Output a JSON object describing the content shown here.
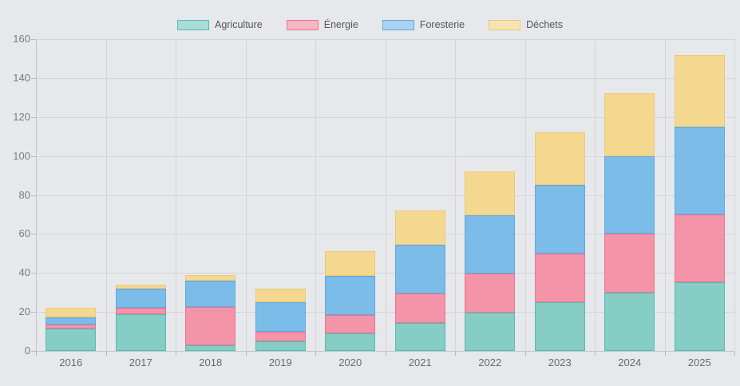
{
  "background_color": "#e7e8eb",
  "gridline_color": "#d4d5d9",
  "axis_color": "#c2c3c7",
  "chart_data": {
    "type": "bar",
    "stacked": true,
    "title": "",
    "xlabel": "",
    "ylabel": "",
    "legend_position": "top-center",
    "grid": true,
    "ylim": [
      0,
      160
    ],
    "ytick_step": 20,
    "ytick_labels": [
      "160",
      "140",
      "120",
      "100",
      "80",
      "60",
      "40",
      "20",
      "0"
    ],
    "categories": [
      "2016",
      "2017",
      "2018",
      "2019",
      "2020",
      "2021",
      "2022",
      "2023",
      "2024",
      "2025"
    ],
    "series": [
      {
        "name": "Agriculture",
        "fill": "#85cdc5",
        "border": "#52bdb2",
        "legend_fill": "#aadcd6",
        "values": [
          11.5,
          19,
          3,
          5,
          9,
          14.5,
          19.5,
          25,
          30,
          35
        ]
      },
      {
        "name": "Énergie",
        "fill": "#f494a8",
        "border": "#f07294",
        "legend_fill": "#f6b6c3",
        "values": [
          2,
          3,
          19.5,
          5,
          9.5,
          15,
          20,
          25,
          30,
          35
        ]
      },
      {
        "name": "Foresterie",
        "fill": "#7bbce9",
        "border": "#5caae2",
        "legend_fill": "#abd3f1",
        "values": [
          3.5,
          10,
          13.5,
          15,
          20,
          25,
          30,
          35,
          40,
          45
        ]
      },
      {
        "name": "Déchets",
        "fill": "#f4d890",
        "border": "#eec871",
        "legend_fill": "#f7e4b4",
        "values": [
          5,
          2,
          3,
          7,
          12.5,
          17.5,
          22.5,
          27,
          32,
          37
        ]
      }
    ],
    "totals": [
      22,
      34,
      39,
      32,
      51,
      72,
      92,
      112,
      132,
      152
    ]
  }
}
